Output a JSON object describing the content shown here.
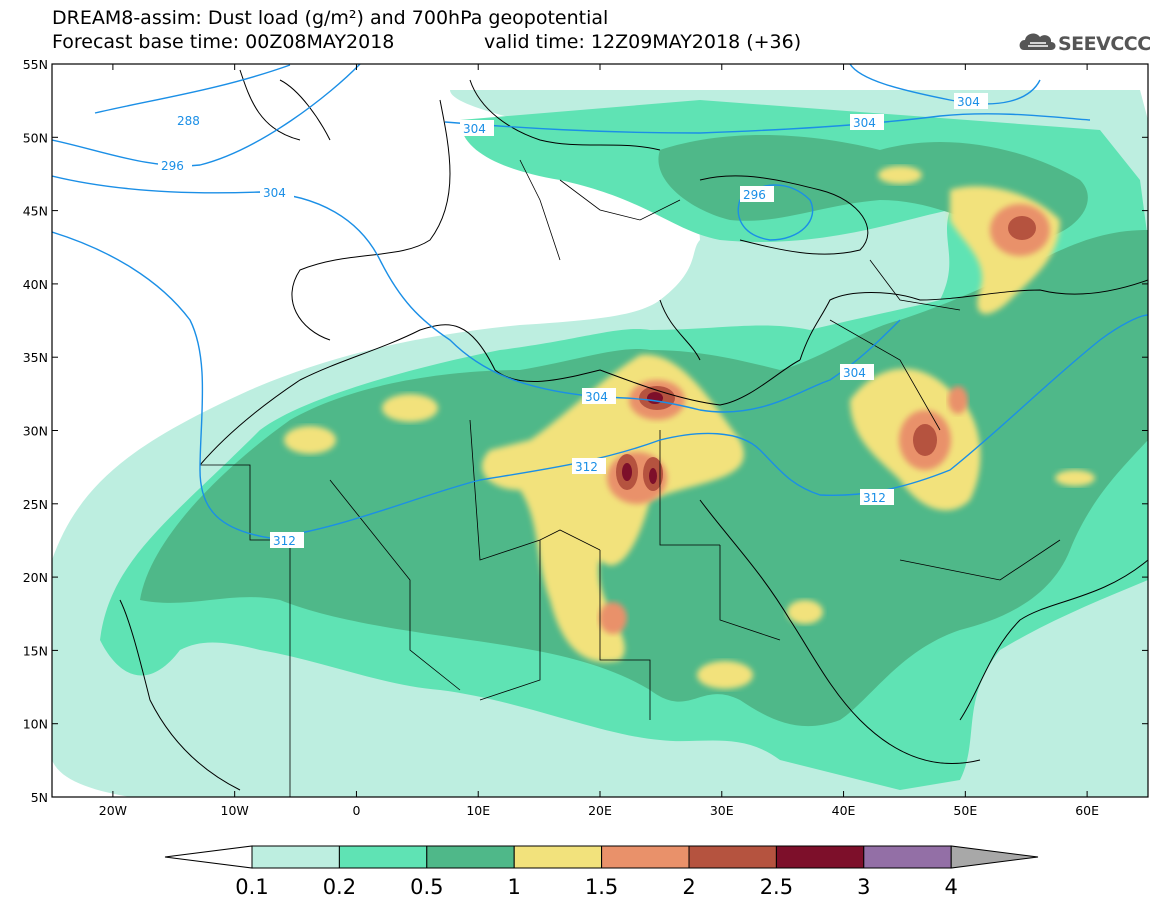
{
  "header": {
    "title_line1": "DREAM8-assim: Dust load (g/m²) and 700hPa geopotential",
    "title_line2_left": "Forecast base time: 00Z08MAY2018",
    "title_line2_right": "valid time: 12Z09MAY2018 (+36)",
    "logo_text": "SEEVCCC"
  },
  "map": {
    "lon_range": [
      -25,
      65
    ],
    "lat_range": [
      5,
      55
    ],
    "lat_labels": [
      "55N",
      "50N",
      "45N",
      "40N",
      "35N",
      "30N",
      "25N",
      "20N",
      "15N",
      "10N",
      "5N"
    ],
    "lon_labels": [
      "20W",
      "10W",
      "0",
      "10E",
      "20E",
      "30E",
      "40E",
      "50E",
      "60E"
    ],
    "contour_labels": [
      "288",
      "296",
      "304",
      "304",
      "304",
      "296",
      "304",
      "304",
      "312",
      "312",
      "312"
    ]
  },
  "colorbar": {
    "tick_labels": [
      "0.1",
      "0.2",
      "0.5",
      "1",
      "1.5",
      "2",
      "2.5",
      "3",
      "4"
    ],
    "colors": [
      "#bdeee0",
      "#5fe3b4",
      "#4fb889",
      "#f2e27c",
      "#e9916a",
      "#b5533f",
      "#7d0f2a",
      "#936fa6"
    ],
    "over_color": "#a8a8a8",
    "under_color": "#ffffff"
  },
  "colors": {
    "contour": "#1b8fe6",
    "coast": "#000000"
  }
}
